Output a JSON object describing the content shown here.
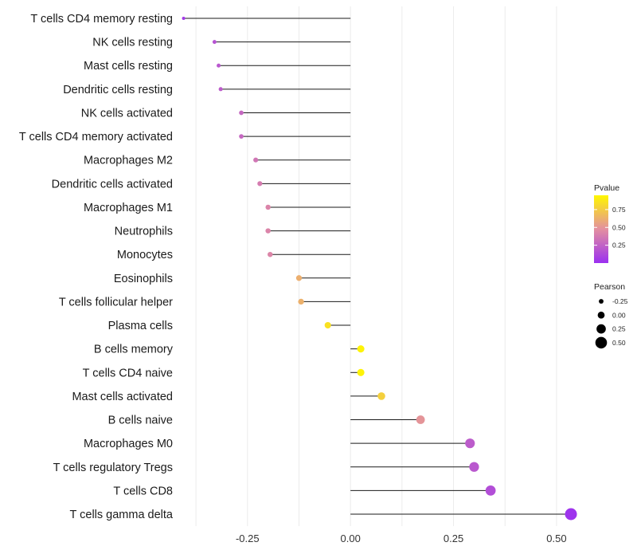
{
  "chart_data": {
    "type": "lollipop",
    "title": "",
    "xlabel": "",
    "ylabel": "",
    "xlim": [
      -0.41,
      0.56
    ],
    "x_ticks": [
      -0.25,
      0.0,
      0.25,
      0.5
    ],
    "x_tick_labels": [
      "-0.25",
      "0.00",
      "0.25",
      "0.50"
    ],
    "grid": true,
    "color_low": "#9B30F0",
    "color_mid": "#E38FA0",
    "color_high": "#FFF700",
    "points": [
      {
        "label": "T cells CD4 memory resting",
        "pearson": -0.405,
        "pvalue": 0.05
      },
      {
        "label": "NK cells resting",
        "pearson": -0.33,
        "pvalue": 0.18
      },
      {
        "label": "Mast cells resting",
        "pearson": -0.32,
        "pvalue": 0.2
      },
      {
        "label": "Dendritic cells resting",
        "pearson": -0.315,
        "pvalue": 0.22
      },
      {
        "label": "NK cells activated",
        "pearson": -0.265,
        "pvalue": 0.28
      },
      {
        "label": "T cells CD4 memory activated",
        "pearson": -0.265,
        "pvalue": 0.28
      },
      {
        "label": "Macrophages M2",
        "pearson": -0.23,
        "pvalue": 0.35
      },
      {
        "label": "Dendritic cells activated",
        "pearson": -0.22,
        "pvalue": 0.38
      },
      {
        "label": "Macrophages M1",
        "pearson": -0.2,
        "pvalue": 0.42
      },
      {
        "label": "Neutrophils",
        "pearson": -0.2,
        "pvalue": 0.42
      },
      {
        "label": "Monocytes",
        "pearson": -0.195,
        "pvalue": 0.43
      },
      {
        "label": "Eosinophils",
        "pearson": -0.125,
        "pvalue": 0.62
      },
      {
        "label": "T cells follicular helper",
        "pearson": -0.12,
        "pvalue": 0.63
      },
      {
        "label": "Plasma cells",
        "pearson": -0.055,
        "pvalue": 0.85
      },
      {
        "label": "B cells memory",
        "pearson": 0.025,
        "pvalue": 0.93
      },
      {
        "label": "T cells CD4 naive",
        "pearson": 0.025,
        "pvalue": 0.93
      },
      {
        "label": "Mast cells activated",
        "pearson": 0.075,
        "pvalue": 0.77
      },
      {
        "label": "B cells naive",
        "pearson": 0.17,
        "pvalue": 0.5
      },
      {
        "label": "Macrophages M0",
        "pearson": 0.29,
        "pvalue": 0.22
      },
      {
        "label": "T cells regulatory  Tregs ",
        "pearson": 0.3,
        "pvalue": 0.2
      },
      {
        "label": "T cells CD8",
        "pearson": 0.34,
        "pvalue": 0.15
      },
      {
        "label": "T cells gamma delta",
        "pearson": 0.535,
        "pvalue": 0.02
      }
    ],
    "legend_pvalue": {
      "title": "Pvalue",
      "ticks": [
        0.75,
        0.5,
        0.25
      ],
      "tick_labels": [
        "0.75",
        "0.50",
        "0.25"
      ],
      "range": [
        0.0,
        0.95
      ]
    },
    "legend_pearson": {
      "title": "Pearson",
      "entries": [
        {
          "value": -0.25,
          "label": "-0.25"
        },
        {
          "value": 0.0,
          "label": "0.00"
        },
        {
          "value": 0.25,
          "label": "0.25"
        },
        {
          "value": 0.5,
          "label": "0.50"
        }
      ]
    }
  }
}
